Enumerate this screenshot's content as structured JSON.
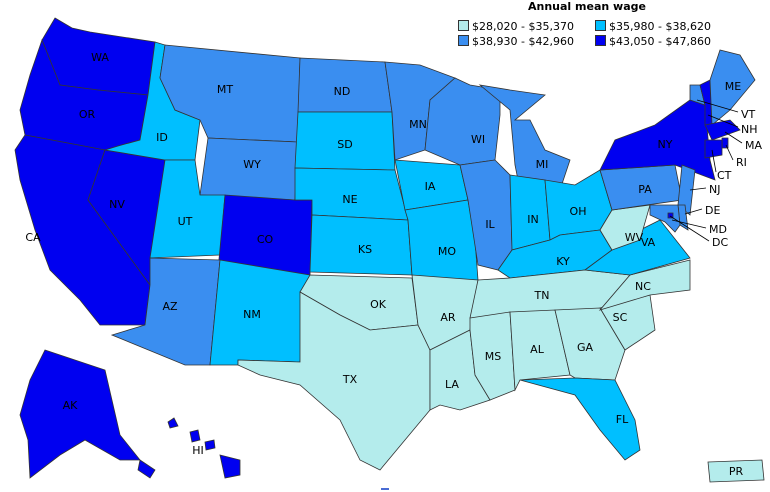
{
  "legend": {
    "title": "Annual mean wage",
    "bins": [
      {
        "label": "$28,020 - $35,370",
        "color": "#b4ecec"
      },
      {
        "label": "$35,980 - $38,620",
        "color": "#00bfff"
      },
      {
        "label": "$38,930 - $42,960",
        "color": "#3a8ef0"
      },
      {
        "label": "$43,050 - $47,860",
        "color": "#0000f0"
      }
    ]
  },
  "states": [
    {
      "abbr": "WA",
      "bin": 3
    },
    {
      "abbr": "OR",
      "bin": 3
    },
    {
      "abbr": "CA",
      "bin": 3
    },
    {
      "abbr": "NV",
      "bin": 3
    },
    {
      "abbr": "ID",
      "bin": 1
    },
    {
      "abbr": "MT",
      "bin": 2
    },
    {
      "abbr": "WY",
      "bin": 2
    },
    {
      "abbr": "UT",
      "bin": 1
    },
    {
      "abbr": "CO",
      "bin": 3
    },
    {
      "abbr": "AZ",
      "bin": 2
    },
    {
      "abbr": "NM",
      "bin": 1
    },
    {
      "abbr": "ND",
      "bin": 2
    },
    {
      "abbr": "SD",
      "bin": 1
    },
    {
      "abbr": "NE",
      "bin": 1
    },
    {
      "abbr": "KS",
      "bin": 1
    },
    {
      "abbr": "OK",
      "bin": 0
    },
    {
      "abbr": "TX",
      "bin": 0
    },
    {
      "abbr": "MN",
      "bin": 2
    },
    {
      "abbr": "IA",
      "bin": 1
    },
    {
      "abbr": "MO",
      "bin": 1
    },
    {
      "abbr": "AR",
      "bin": 0
    },
    {
      "abbr": "LA",
      "bin": 0
    },
    {
      "abbr": "WI",
      "bin": 2
    },
    {
      "abbr": "IL",
      "bin": 2
    },
    {
      "abbr": "MI",
      "bin": 2
    },
    {
      "abbr": "IN",
      "bin": 1
    },
    {
      "abbr": "OH",
      "bin": 1
    },
    {
      "abbr": "KY",
      "bin": 1
    },
    {
      "abbr": "TN",
      "bin": 0
    },
    {
      "abbr": "MS",
      "bin": 0
    },
    {
      "abbr": "AL",
      "bin": 0
    },
    {
      "abbr": "GA",
      "bin": 0
    },
    {
      "abbr": "FL",
      "bin": 1
    },
    {
      "abbr": "SC",
      "bin": 0
    },
    {
      "abbr": "NC",
      "bin": 0
    },
    {
      "abbr": "VA",
      "bin": 1
    },
    {
      "abbr": "WV",
      "bin": 0
    },
    {
      "abbr": "PA",
      "bin": 2
    },
    {
      "abbr": "NY",
      "bin": 3
    },
    {
      "abbr": "VT",
      "bin": 2
    },
    {
      "abbr": "NH",
      "bin": 3
    },
    {
      "abbr": "ME",
      "bin": 2
    },
    {
      "abbr": "MA",
      "bin": 3
    },
    {
      "abbr": "RI",
      "bin": 3
    },
    {
      "abbr": "CT",
      "bin": 3
    },
    {
      "abbr": "NJ",
      "bin": 2
    },
    {
      "abbr": "DE",
      "bin": 2
    },
    {
      "abbr": "MD",
      "bin": 2
    },
    {
      "abbr": "DC",
      "bin": 3
    },
    {
      "abbr": "AK",
      "bin": 3
    },
    {
      "abbr": "HI",
      "bin": 3
    },
    {
      "abbr": "PR",
      "bin": 0
    }
  ]
}
